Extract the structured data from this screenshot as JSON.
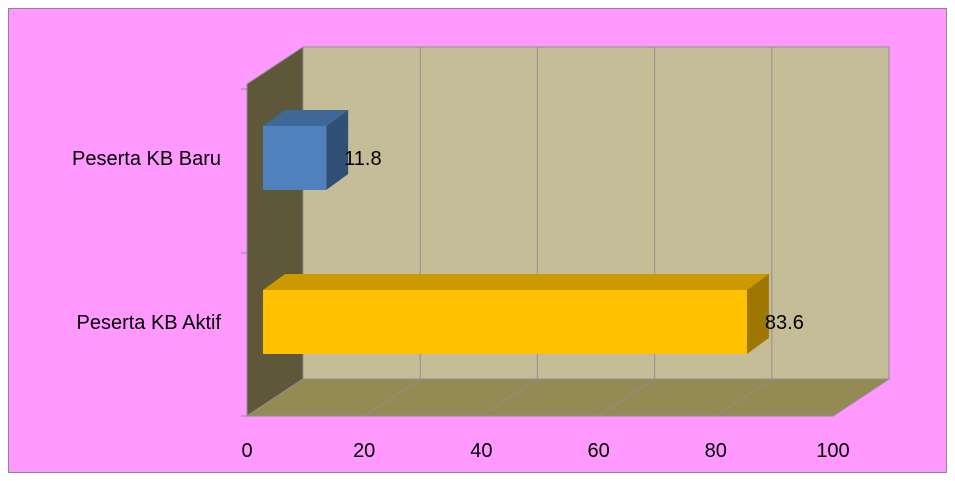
{
  "chart_data": {
    "type": "bar",
    "orientation": "horizontal",
    "style": "3d",
    "title": "",
    "xlabel": "",
    "ylabel": "",
    "categories": [
      "Peserta KB Baru",
      "Peserta KB Aktif"
    ],
    "series": [
      {
        "values": [
          11.8,
          83.6
        ]
      }
    ],
    "bar_colors": [
      "#4f81bd",
      "#ffc000"
    ],
    "xlim": [
      0,
      100
    ],
    "x_ticks": [
      0,
      20,
      40,
      60,
      80,
      100
    ],
    "grid": true,
    "legend": "none",
    "data_labels": true
  },
  "colors": {
    "background": "#ff99ff",
    "back_wall": "#c4bd97",
    "side_wall": "#5f5739",
    "floor": "#948a54"
  }
}
